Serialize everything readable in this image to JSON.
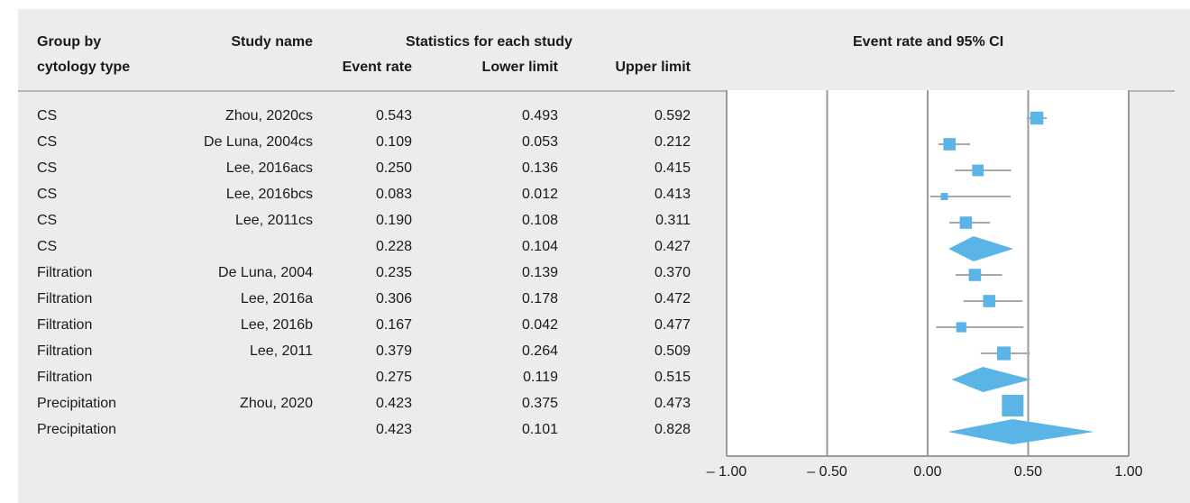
{
  "headers": {
    "group_line1": "Group by",
    "group_line2": "cytology type",
    "study": "Study name",
    "stats": "Statistics for each study",
    "event_rate": "Event rate",
    "lower": "Lower limit",
    "upper": "Upper limit",
    "plot": "Event rate and 95% CI"
  },
  "rows": [
    {
      "group": "CS",
      "study": "Zhou, 2020cs",
      "er": "0.543",
      "ll": "0.493",
      "ul": "0.592"
    },
    {
      "group": "CS",
      "study": "De Luna, 2004cs",
      "er": "0.109",
      "ll": "0.053",
      "ul": "0.212"
    },
    {
      "group": "CS",
      "study": "Lee, 2016acs",
      "er": "0.250",
      "ll": "0.136",
      "ul": "0.415"
    },
    {
      "group": "CS",
      "study": "Lee, 2016bcs",
      "er": "0.083",
      "ll": "0.012",
      "ul": "0.413"
    },
    {
      "group": "CS",
      "study": "Lee, 2011cs",
      "er": "0.190",
      "ll": "0.108",
      "ul": "0.311"
    },
    {
      "group": "CS",
      "study": "",
      "er": "0.228",
      "ll": "0.104",
      "ul": "0.427"
    },
    {
      "group": "Filtration",
      "study": "De Luna, 2004",
      "er": "0.235",
      "ll": "0.139",
      "ul": "0.370"
    },
    {
      "group": "Filtration",
      "study": "Lee, 2016a",
      "er": "0.306",
      "ll": "0.178",
      "ul": "0.472"
    },
    {
      "group": "Filtration",
      "study": "Lee, 2016b",
      "er": "0.167",
      "ll": "0.042",
      "ul": "0.477"
    },
    {
      "group": "Filtration",
      "study": "Lee, 2011",
      "er": "0.379",
      "ll": "0.264",
      "ul": "0.509"
    },
    {
      "group": "Filtration",
      "study": "",
      "er": "0.275",
      "ll": "0.119",
      "ul": "0.515"
    },
    {
      "group": "Precipitation",
      "study": "Zhou, 2020",
      "er": "0.423",
      "ll": "0.375",
      "ul": "0.473"
    },
    {
      "group": "Precipitation",
      "study": "",
      "er": "0.423",
      "ll": "0.101",
      "ul": "0.828"
    }
  ],
  "chart_data": {
    "type": "scatter",
    "title": "Event rate and 95% CI",
    "xlim": [
      -1.0,
      1.0
    ],
    "xticks": [
      -1.0,
      -0.5,
      0.0,
      0.5,
      1.0
    ],
    "xtick_labels": [
      "– 1.00",
      "– 0.50",
      "0.00",
      "0.50",
      "1.00"
    ],
    "grid": true,
    "marker_color": "#5ab5e6",
    "ci_color": "#a8a8a8",
    "points": [
      {
        "label": "Zhou, 2020cs",
        "kind": "study",
        "estimate": 0.543,
        "lower": 0.493,
        "upper": 0.592,
        "weight": 0.9
      },
      {
        "label": "De Luna, 2004cs",
        "kind": "study",
        "estimate": 0.109,
        "lower": 0.053,
        "upper": 0.212,
        "weight": 0.85
      },
      {
        "label": "Lee, 2016acs",
        "kind": "study",
        "estimate": 0.25,
        "lower": 0.136,
        "upper": 0.415,
        "weight": 0.8
      },
      {
        "label": "Lee, 2016bcs",
        "kind": "study",
        "estimate": 0.083,
        "lower": 0.012,
        "upper": 0.413,
        "weight": 0.5
      },
      {
        "label": "Lee, 2011cs",
        "kind": "study",
        "estimate": 0.19,
        "lower": 0.108,
        "upper": 0.311,
        "weight": 0.85
      },
      {
        "label": "CS",
        "kind": "summary",
        "estimate": 0.228,
        "lower": 0.104,
        "upper": 0.427
      },
      {
        "label": "De Luna, 2004",
        "kind": "study",
        "estimate": 0.235,
        "lower": 0.139,
        "upper": 0.37,
        "weight": 0.85
      },
      {
        "label": "Lee, 2016a",
        "kind": "study",
        "estimate": 0.306,
        "lower": 0.178,
        "upper": 0.472,
        "weight": 0.85
      },
      {
        "label": "Lee, 2016b",
        "kind": "study",
        "estimate": 0.167,
        "lower": 0.042,
        "upper": 0.477,
        "weight": 0.7
      },
      {
        "label": "Lee, 2011",
        "kind": "study",
        "estimate": 0.379,
        "lower": 0.264,
        "upper": 0.509,
        "weight": 0.95
      },
      {
        "label": "Filtration",
        "kind": "summary",
        "estimate": 0.275,
        "lower": 0.119,
        "upper": 0.515
      },
      {
        "label": "Zhou, 2020",
        "kind": "study",
        "estimate": 0.423,
        "lower": 0.375,
        "upper": 0.473,
        "weight": 1.5
      },
      {
        "label": "Precipitation",
        "kind": "summary",
        "estimate": 0.423,
        "lower": 0.101,
        "upper": 0.828
      }
    ]
  }
}
